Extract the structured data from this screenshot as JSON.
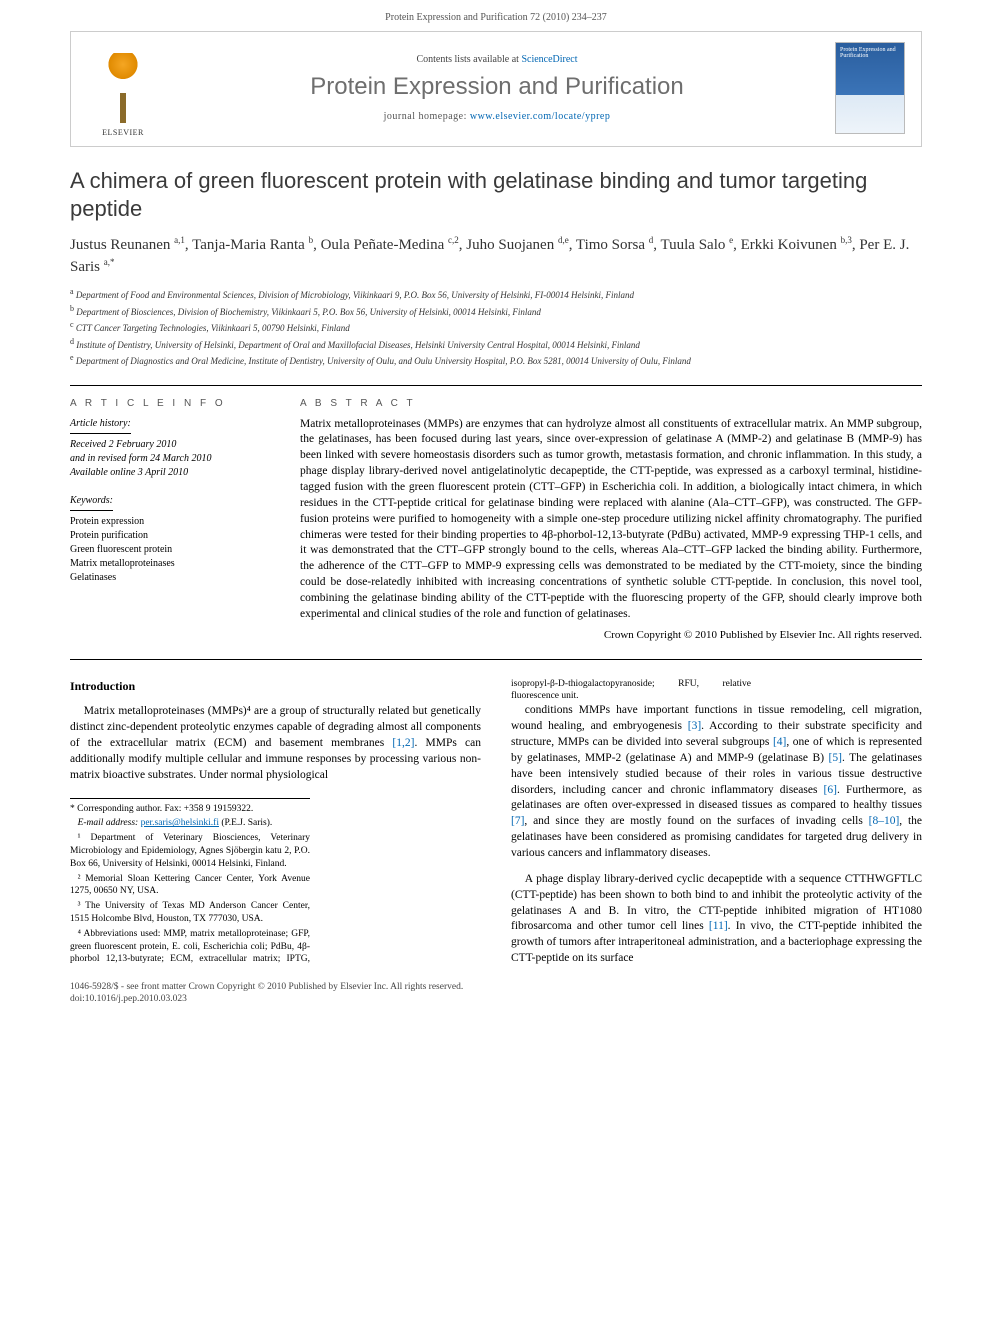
{
  "header": {
    "running": "Protein Expression and Purification 72 (2010) 234–237",
    "contents_prefix": "Contents lists available at ",
    "contents_link": "ScienceDirect",
    "journal": "Protein Expression and Purification",
    "homepage_prefix": "journal homepage: ",
    "homepage_url": "www.elsevier.com/locate/yprep",
    "publisher": "ELSEVIER",
    "cover_text_top": "Protein Expression and Purification"
  },
  "title": "A chimera of green fluorescent protein with gelatinase binding and tumor targeting peptide",
  "authors_html": "Justus Reunanen <sup>a,1</sup>, Tanja-Maria Ranta <sup>b</sup>, Oula Peñate-Medina <sup>c,2</sup>, Juho Suojanen <sup>d,e</sup>, Timo Sorsa <sup>d</sup>, Tuula Salo <sup>e</sup>, Erkki Koivunen <sup>b,3</sup>, Per E. J. Saris <sup>a,*</sup>",
  "affiliations": [
    {
      "sup": "a",
      "text": "Department of Food and Environmental Sciences, Division of Microbiology, Viikinkaari 9, P.O. Box 56, University of Helsinki, FI-00014 Helsinki, Finland"
    },
    {
      "sup": "b",
      "text": "Department of Biosciences, Division of Biochemistry, Viikinkaari 5, P.O. Box 56, University of Helsinki, 00014 Helsinki, Finland"
    },
    {
      "sup": "c",
      "text": "CTT Cancer Targeting Technologies, Viikinkaari 5, 00790 Helsinki, Finland"
    },
    {
      "sup": "d",
      "text": "Institute of Dentistry, University of Helsinki, Department of Oral and Maxillofacial Diseases, Helsinki University Central Hospital, 00014 Helsinki, Finland"
    },
    {
      "sup": "e",
      "text": "Department of Diagnostics and Oral Medicine, Institute of Dentistry, University of Oulu, and Oulu University Hospital, P.O. Box 5281, 00014 University of Oulu, Finland"
    }
  ],
  "info": {
    "heading": "A R T I C L E   I N F O",
    "history_hdr": "Article history:",
    "history": [
      "Received 2 February 2010",
      "and in revised form 24 March 2010",
      "Available online 3 April 2010"
    ],
    "keywords_hdr": "Keywords:",
    "keywords": [
      "Protein expression",
      "Protein purification",
      "Green fluorescent protein",
      "Matrix metalloproteinases",
      "Gelatinases"
    ]
  },
  "abstract": {
    "heading": "A B S T R A C T",
    "text": "Matrix metalloproteinases (MMPs) are enzymes that can hydrolyze almost all constituents of extracellular matrix. An MMP subgroup, the gelatinases, has been focused during last years, since over-expression of gelatinase A (MMP-2) and gelatinase B (MMP-9) has been linked with severe homeostasis disorders such as tumor growth, metastasis formation, and chronic inflammation. In this study, a phage display library-derived novel antigelatinolytic decapeptide, the CTT-peptide, was expressed as a carboxyl terminal, histidine-tagged fusion with the green fluorescent protein (CTT–GFP) in Escherichia coli. In addition, a biologically intact chimera, in which residues in the CTT-peptide critical for gelatinase binding were replaced with alanine (Ala–CTT–GFP), was constructed. The GFP-fusion proteins were purified to homogeneity with a simple one-step procedure utilizing nickel affinity chromatography. The purified chimeras were tested for their binding properties to 4β-phorbol-12,13-butyrate (PdBu) activated, MMP-9 expressing THP-1 cells, and it was demonstrated that the CTT–GFP strongly bound to the cells, whereas Ala–CTT–GFP lacked the binding ability. Furthermore, the adherence of the CTT–GFP to MMP-9 expressing cells was demonstrated to be mediated by the CTT-moiety, since the binding could be dose-relatedly inhibited with increasing concentrations of synthetic soluble CTT-peptide. In conclusion, this novel tool, combining the gelatinase binding ability of the CTT-peptide with the fluorescing property of the GFP, should clearly improve both experimental and clinical studies of the role and function of gelatinases.",
    "copyright": "Crown Copyright © 2010 Published by Elsevier Inc. All rights reserved."
  },
  "body": {
    "section_heading": "Introduction",
    "p1": "Matrix metalloproteinases (MMPs)⁴ are a group of structurally related but genetically distinct zinc-dependent proteolytic enzymes capable of degrading almost all components of the extracellular matrix (ECM) and basement membranes [1,2]. MMPs can additionally modify multiple cellular and immune responses by processing various non-matrix bioactive substrates. Under normal physiological",
    "p2": "conditions MMPs have important functions in tissue remodeling, cell migration, wound healing, and embryogenesis [3]. According to their substrate specificity and structure, MMPs can be divided into several subgroups [4], one of which is represented by gelatinases, MMP-2 (gelatinase A) and MMP-9 (gelatinase B) [5]. The gelatinases have been intensively studied because of their roles in various tissue destructive disorders, including cancer and chronic inflammatory diseases [6]. Furthermore, as gelatinases are often over-expressed in diseased tissues as compared to healthy tissues [7], and since they are mostly found on the surfaces of invading cells [8–10], the gelatinases have been considered as promising candidates for targeted drug delivery in various cancers and inflammatory diseases.",
    "p3": "A phage display library-derived cyclic decapeptide with a sequence CTTHWGFTLC (CTT-peptide) has been shown to both bind to and inhibit the proteolytic activity of the gelatinases A and B. In vitro, the CTT-peptide inhibited migration of HT1080 fibrosarcoma and other tumor cell lines [11]. In vivo, the CTT-peptide inhibited the growth of tumors after intraperitoneal administration, and a bacteriophage expressing the CTT-peptide on its surface"
  },
  "footnotes": {
    "corr": "* Corresponding author. Fax: +358 9 19159322.",
    "email_label": "E-mail address:",
    "email": "per.saris@helsinki.fi",
    "email_name": "(P.E.J. Saris).",
    "fn1": "¹ Department of Veterinary Biosciences, Veterinary Microbiology and Epidemiology, Agnes Sjöbergin katu 2, P.O. Box 66, University of Helsinki, 00014 Helsinki, Finland.",
    "fn2": "² Memorial Sloan Kettering Cancer Center, York Avenue 1275, 00650 NY, USA.",
    "fn3": "³ The University of Texas MD Anderson Cancer Center, 1515 Holcombe Blvd, Houston, TX 777030, USA.",
    "fn4": "⁴ Abbreviations used: MMP, matrix metalloproteinase; GFP, green fluorescent protein, E. coli, Escherichia coli; PdBu, 4β-phorbol 12,13-butyrate; ECM, extracellular matrix; IPTG, isopropyl-β-D-thiogalactopyranoside; RFU, relative fluorescence unit."
  },
  "footer": {
    "issn": "1046-5928/$ - see front matter Crown Copyright © 2010 Published by Elsevier Inc. All rights reserved.",
    "doi": "doi:10.1016/j.pep.2010.03.023"
  },
  "colors": {
    "link": "#0066b3",
    "journal_grey": "#6e6e6e",
    "border": "#cccccc",
    "text": "#000000"
  }
}
